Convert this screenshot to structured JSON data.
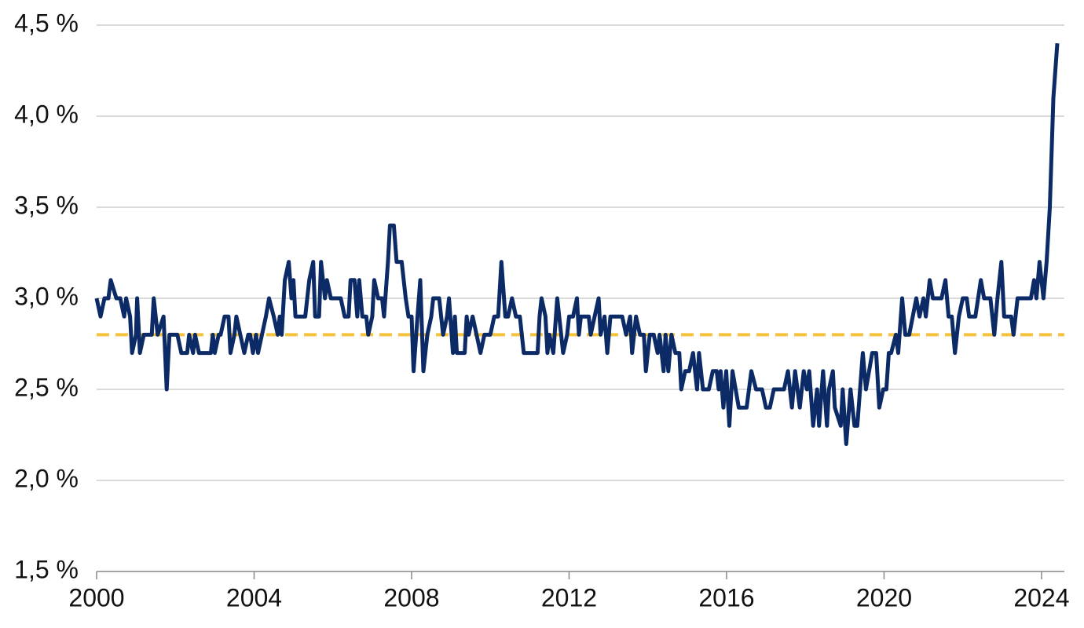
{
  "chart_data": {
    "type": "line",
    "x": [
      2000.0,
      2000.1,
      2000.2,
      2000.3,
      2000.36,
      2000.5,
      2000.6,
      2000.7,
      2000.75,
      2000.85,
      2000.9,
      2001.0,
      2001.03,
      2001.1,
      2001.2,
      2001.4,
      2001.45,
      2001.55,
      2001.7,
      2001.78,
      2001.85,
      2002.05,
      2002.15,
      2002.3,
      2002.35,
      2002.45,
      2002.5,
      2002.6,
      2002.9,
      2002.95,
      2003.0,
      2003.1,
      2003.15,
      2003.25,
      2003.35,
      2003.4,
      2003.5,
      2003.55,
      2003.65,
      2003.75,
      2003.85,
      2003.9,
      2003.97,
      2004.05,
      2004.1,
      2004.2,
      2004.3,
      2004.38,
      2004.5,
      2004.6,
      2004.65,
      2004.7,
      2004.78,
      2004.88,
      2004.95,
      2005.0,
      2005.05,
      2005.3,
      2005.4,
      2005.5,
      2005.55,
      2005.65,
      2005.7,
      2005.8,
      2005.85,
      2005.95,
      2006.2,
      2006.3,
      2006.4,
      2006.45,
      2006.55,
      2006.62,
      2006.67,
      2006.75,
      2006.85,
      2006.9,
      2007.0,
      2007.05,
      2007.15,
      2007.25,
      2007.3,
      2007.4,
      2007.45,
      2007.55,
      2007.62,
      2007.75,
      2007.85,
      2007.92,
      2008.0,
      2008.05,
      2008.15,
      2008.22,
      2008.3,
      2008.4,
      2008.5,
      2008.55,
      2008.7,
      2008.8,
      2008.9,
      2008.95,
      2009.05,
      2009.1,
      2009.15,
      2009.35,
      2009.4,
      2009.45,
      2009.55,
      2009.65,
      2009.75,
      2009.85,
      2010.0,
      2010.1,
      2010.2,
      2010.28,
      2010.38,
      2010.45,
      2010.55,
      2010.65,
      2010.75,
      2010.85,
      2011.2,
      2011.25,
      2011.3,
      2011.4,
      2011.45,
      2011.5,
      2011.6,
      2011.7,
      2011.8,
      2011.85,
      2011.95,
      2012.0,
      2012.1,
      2012.2,
      2012.25,
      2012.3,
      2012.5,
      2012.55,
      2012.65,
      2012.75,
      2012.8,
      2012.9,
      2012.97,
      2013.05,
      2013.35,
      2013.45,
      2013.55,
      2013.6,
      2013.7,
      2013.8,
      2013.9,
      2013.95,
      2014.05,
      2014.15,
      2014.25,
      2014.3,
      2014.4,
      2014.45,
      2014.52,
      2014.6,
      2014.7,
      2014.8,
      2014.85,
      2014.95,
      2015.05,
      2015.15,
      2015.25,
      2015.3,
      2015.4,
      2015.55,
      2015.65,
      2015.75,
      2015.8,
      2015.85,
      2015.92,
      2015.99,
      2016.07,
      2016.15,
      2016.23,
      2016.31,
      2016.51,
      2016.63,
      2016.75,
      2016.9,
      2017.0,
      2017.1,
      2017.2,
      2017.46,
      2017.56,
      2017.66,
      2017.74,
      2017.86,
      2017.96,
      2018.04,
      2018.1,
      2018.2,
      2018.3,
      2018.35,
      2018.45,
      2018.55,
      2018.6,
      2018.7,
      2018.75,
      2018.9,
      2018.95,
      2019.04,
      2019.15,
      2019.25,
      2019.32,
      2019.46,
      2019.54,
      2019.7,
      2019.8,
      2019.88,
      2019.98,
      2020.06,
      2020.12,
      2020.18,
      2020.3,
      2020.36,
      2020.46,
      2020.54,
      2020.64,
      2020.82,
      2020.9,
      2021.0,
      2021.06,
      2021.16,
      2021.24,
      2021.46,
      2021.56,
      2021.64,
      2021.72,
      2021.8,
      2021.9,
      2022.0,
      2022.1,
      2022.16,
      2022.32,
      2022.46,
      2022.54,
      2022.7,
      2022.8,
      2022.88,
      2022.98,
      2023.05,
      2023.23,
      2023.29,
      2023.39,
      2023.73,
      2023.81,
      2023.87,
      2023.95,
      2024.05,
      2024.13,
      2024.21,
      2024.3,
      2024.4
    ],
    "series": [
      {
        "color": "#0b2a66",
        "values": [
          3.0,
          2.9,
          3.0,
          3.0,
          3.1,
          3.0,
          3.0,
          2.9,
          3.0,
          2.9,
          2.7,
          2.8,
          3.0,
          2.7,
          2.8,
          2.8,
          3.0,
          2.8,
          2.9,
          2.5,
          2.8,
          2.8,
          2.7,
          2.7,
          2.8,
          2.7,
          2.8,
          2.7,
          2.7,
          2.8,
          2.7,
          2.8,
          2.8,
          2.9,
          2.9,
          2.7,
          2.8,
          2.9,
          2.8,
          2.7,
          2.8,
          2.8,
          2.7,
          2.8,
          2.7,
          2.8,
          2.9,
          3.0,
          2.9,
          2.8,
          2.9,
          2.8,
          3.1,
          3.2,
          3.0,
          3.1,
          2.9,
          2.9,
          3.1,
          3.2,
          2.9,
          2.9,
          3.2,
          3.0,
          3.1,
          3.0,
          3.0,
          2.9,
          2.9,
          3.1,
          3.1,
          2.9,
          3.1,
          2.9,
          2.9,
          2.8,
          2.9,
          3.1,
          3.0,
          3.0,
          2.9,
          3.2,
          3.4,
          3.4,
          3.2,
          3.2,
          3.0,
          2.9,
          2.9,
          2.6,
          2.9,
          3.1,
          2.6,
          2.8,
          2.9,
          3.0,
          3.0,
          2.8,
          2.9,
          3.0,
          2.7,
          2.9,
          2.7,
          2.7,
          2.9,
          2.8,
          2.9,
          2.8,
          2.7,
          2.8,
          2.8,
          2.9,
          2.9,
          3.2,
          2.9,
          2.9,
          3.0,
          2.9,
          2.9,
          2.7,
          2.7,
          2.9,
          3.0,
          2.9,
          2.7,
          2.8,
          2.7,
          3.0,
          2.8,
          2.7,
          2.8,
          2.9,
          2.9,
          3.0,
          2.8,
          2.9,
          2.9,
          2.8,
          2.9,
          3.0,
          2.8,
          2.9,
          2.7,
          2.9,
          2.9,
          2.8,
          2.9,
          2.7,
          2.9,
          2.8,
          2.8,
          2.6,
          2.8,
          2.8,
          2.7,
          2.8,
          2.6,
          2.8,
          2.6,
          2.8,
          2.7,
          2.7,
          2.5,
          2.6,
          2.6,
          2.7,
          2.5,
          2.7,
          2.5,
          2.5,
          2.6,
          2.6,
          2.5,
          2.6,
          2.4,
          2.6,
          2.3,
          2.6,
          2.5,
          2.4,
          2.4,
          2.6,
          2.5,
          2.5,
          2.4,
          2.4,
          2.5,
          2.5,
          2.6,
          2.4,
          2.6,
          2.4,
          2.6,
          2.5,
          2.6,
          2.3,
          2.5,
          2.3,
          2.6,
          2.3,
          2.5,
          2.6,
          2.4,
          2.3,
          2.5,
          2.2,
          2.5,
          2.3,
          2.3,
          2.7,
          2.5,
          2.7,
          2.7,
          2.4,
          2.5,
          2.5,
          2.7,
          2.7,
          2.8,
          2.7,
          3.0,
          2.8,
          2.8,
          3.0,
          2.9,
          3.0,
          2.9,
          3.1,
          3.0,
          3.0,
          3.1,
          2.9,
          2.9,
          2.7,
          2.9,
          3.0,
          3.0,
          2.9,
          2.9,
          3.1,
          3.0,
          3.0,
          2.8,
          3.0,
          3.2,
          2.9,
          2.9,
          2.8,
          3.0,
          3.0,
          3.1,
          3.0,
          3.2,
          3.0,
          3.2,
          3.5,
          4.1,
          4.4
        ]
      }
    ],
    "xlim": [
      2000,
      2024.58
    ],
    "xticks": [
      2000,
      2004,
      2008,
      2012,
      2016,
      2020,
      2024
    ],
    "ylim": [
      1.5,
      4.5
    ],
    "yticks": [
      {
        "value": 1.5,
        "label": "1,5 %"
      },
      {
        "value": 2.0,
        "label": "2,0 %"
      },
      {
        "value": 2.5,
        "label": "2,5 %"
      },
      {
        "value": 3.0,
        "label": "3,0 %"
      },
      {
        "value": 3.5,
        "label": "3,5 %"
      },
      {
        "value": 4.0,
        "label": "4,0 %"
      },
      {
        "value": 4.5,
        "label": "4,5 %"
      }
    ],
    "grid": true,
    "reference_line": {
      "value": 2.8,
      "color": "#f5c33b",
      "style": "dashed"
    }
  }
}
